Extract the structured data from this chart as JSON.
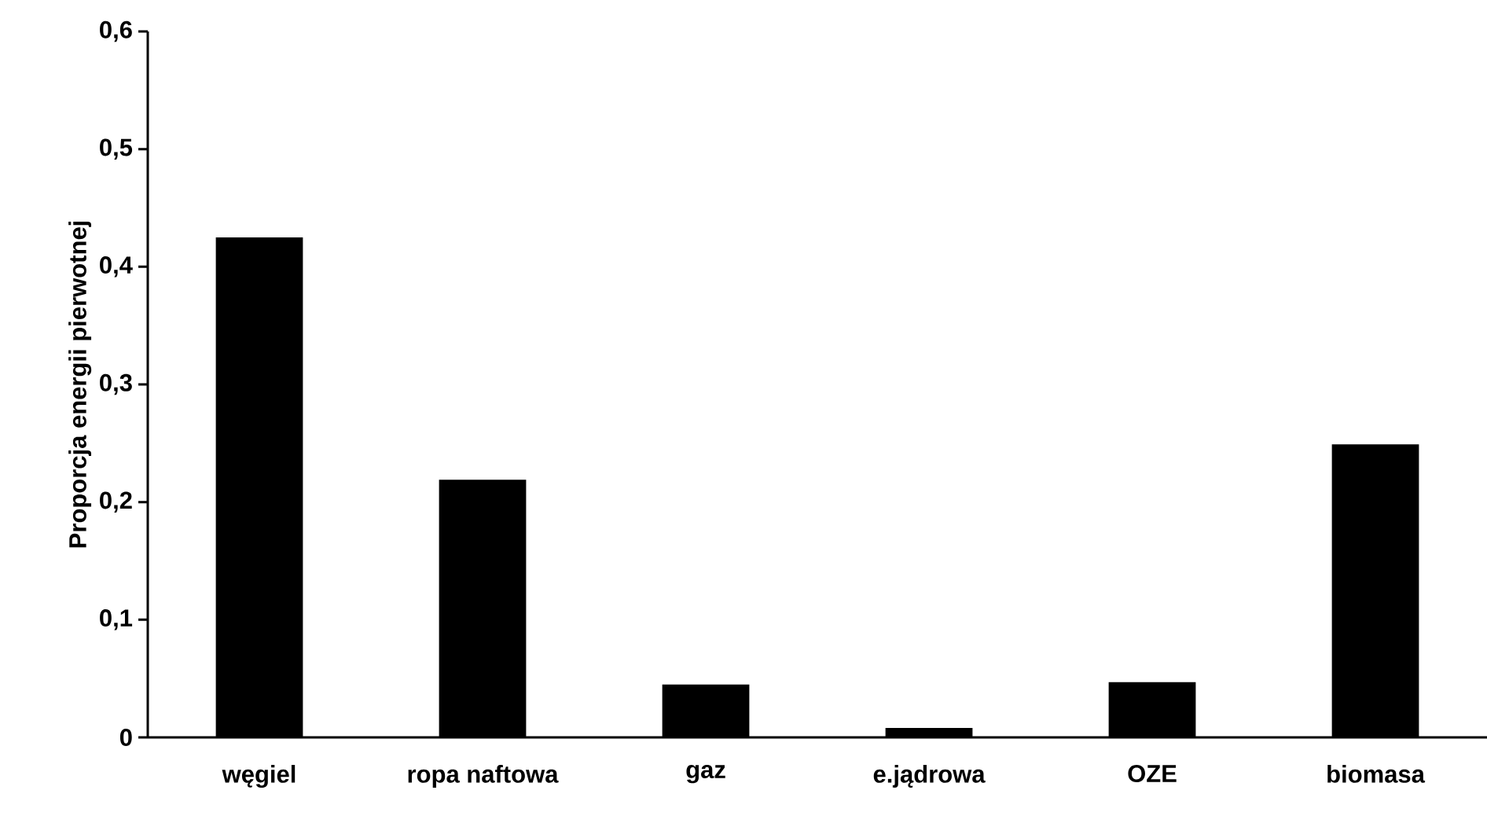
{
  "chart_data": {
    "type": "bar",
    "ylabel": "Proporcja energii pierwotnej",
    "categories": [
      "węgiel",
      "ropa naftowa",
      "gaz",
      "e.jądrowa",
      "OZE",
      "biomasa"
    ],
    "values": [
      0.425,
      0.219,
      0.045,
      0.008,
      0.047,
      0.249
    ],
    "color": "#000000",
    "ylim": [
      0,
      0.6
    ],
    "yticks": [
      0,
      {
        "value": 0.1,
        "label": "0,1"
      },
      {
        "value": 0.2,
        "label": "0,2"
      },
      {
        "value": 0.3,
        "label": "0,3"
      },
      {
        "value": 0.4,
        "label": "0,4"
      },
      {
        "value": 0.5,
        "label": "0,5"
      },
      {
        "value": 0.6,
        "label": "0,6"
      }
    ],
    "grid": false
  }
}
